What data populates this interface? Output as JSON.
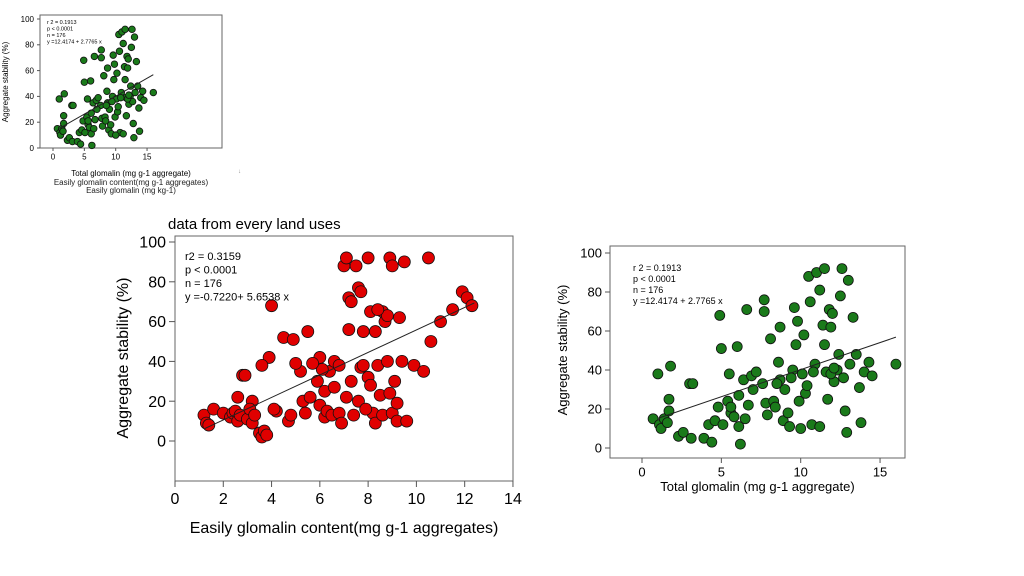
{
  "chart_data": [
    {
      "id": "small",
      "type": "scatter",
      "xlabel": "Total glomalin (mg g-1 aggregate)",
      "ylabel": "Aggregate stability (%)",
      "xlim": [
        -2,
        18
      ],
      "ylim": [
        0,
        100
      ],
      "xticks": [
        0,
        5,
        10,
        15
      ],
      "yticks": [
        0,
        20,
        40,
        60,
        80,
        100
      ],
      "stats": [
        "r 2 = 0.1913",
        "p < 0.0001",
        "n = 176",
        "y =12.4174 + 2.7765 x"
      ],
      "fit": {
        "intercept": 12.4174,
        "slope": 2.7765,
        "x_range": [
          1,
          16
        ]
      },
      "color": "#1a7a1a",
      "overlapped_labels": [
        "Easily glomalin content(mg g-1 aggregates)",
        "Easily glomalin (mg kg-1)"
      ],
      "stray_mark": "↓"
    },
    {
      "id": "red",
      "type": "scatter",
      "title": "data from every land uses",
      "xlabel": "Easily glomalin content(mg g-1 aggregates)",
      "ylabel": "Aggregate stability (%)",
      "xlim": [
        0,
        14
      ],
      "ylim": [
        -20,
        100
      ],
      "xticks": [
        0,
        2,
        4,
        6,
        8,
        10,
        12,
        14
      ],
      "yticks": [
        0,
        20,
        40,
        60,
        80,
        100
      ],
      "stats": [
        "r2 = 0.3159",
        "p < 0.0001",
        "n = 176",
        "y =-0.7220+ 5.6538 x"
      ],
      "fit": {
        "intercept": -0.722,
        "slope": 5.6538,
        "x_range": [
          1.2,
          12.4
        ]
      },
      "color": "#e00000",
      "points": [
        [
          1.2,
          13
        ],
        [
          1.3,
          9
        ],
        [
          1.4,
          8
        ],
        [
          1.6,
          16
        ],
        [
          2.0,
          14
        ],
        [
          2.3,
          12
        ],
        [
          2.4,
          14
        ],
        [
          2.5,
          15
        ],
        [
          2.6,
          10
        ],
        [
          2.7,
          13
        ],
        [
          2.8,
          33
        ],
        [
          2.9,
          33
        ],
        [
          2.6,
          22
        ],
        [
          3.0,
          11
        ],
        [
          3.2,
          9
        ],
        [
          3.2,
          20
        ],
        [
          3.5,
          4
        ],
        [
          3.6,
          2
        ],
        [
          3.7,
          5
        ],
        [
          3.8,
          3
        ],
        [
          3.9,
          42
        ],
        [
          3.6,
          38
        ],
        [
          4.0,
          68
        ],
        [
          4.2,
          15
        ],
        [
          4.7,
          10
        ],
        [
          4.8,
          13
        ],
        [
          4.5,
          52
        ],
        [
          4.9,
          51
        ],
        [
          5.2,
          35
        ],
        [
          5.0,
          39
        ],
        [
          5.3,
          20
        ],
        [
          5.4,
          14
        ],
        [
          5.5,
          55
        ],
        [
          5.6,
          22
        ],
        [
          5.9,
          30
        ],
        [
          6.0,
          42
        ],
        [
          6.0,
          18
        ],
        [
          6.2,
          25
        ],
        [
          6.2,
          12
        ],
        [
          6.3,
          15
        ],
        [
          6.4,
          35
        ],
        [
          6.5,
          13
        ],
        [
          6.6,
          27
        ],
        [
          6.6,
          40
        ],
        [
          6.8,
          14
        ],
        [
          6.9,
          9
        ],
        [
          7.0,
          88
        ],
        [
          7.1,
          92
        ],
        [
          7.2,
          72
        ],
        [
          7.3,
          70
        ],
        [
          7.5,
          88
        ],
        [
          7.6,
          77
        ],
        [
          7.7,
          75
        ],
        [
          7.1,
          22
        ],
        [
          7.3,
          30
        ],
        [
          7.4,
          13
        ],
        [
          7.6,
          20
        ],
        [
          7.7,
          37
        ],
        [
          7.8,
          38
        ],
        [
          8.0,
          32
        ],
        [
          8.0,
          92
        ],
        [
          8.1,
          65
        ],
        [
          8.2,
          14
        ],
        [
          8.3,
          9
        ],
        [
          8.3,
          55
        ],
        [
          8.4,
          38
        ],
        [
          8.5,
          23
        ],
        [
          8.6,
          65
        ],
        [
          8.7,
          60
        ],
        [
          8.8,
          40
        ],
        [
          8.9,
          92
        ],
        [
          8.8,
          63
        ],
        [
          8.6,
          13
        ],
        [
          9.0,
          14
        ],
        [
          9.1,
          30
        ],
        [
          9.2,
          10
        ],
        [
          9.3,
          62
        ],
        [
          9.4,
          40
        ],
        [
          9.5,
          90
        ],
        [
          9.9,
          38
        ],
        [
          9.2,
          19
        ],
        [
          9.0,
          88
        ],
        [
          10.3,
          35
        ],
        [
          10.6,
          50
        ],
        [
          10.5,
          92
        ],
        [
          11.0,
          60
        ],
        [
          11.5,
          66
        ],
        [
          11.9,
          75
        ],
        [
          12.1,
          72
        ],
        [
          12.3,
          68
        ],
        [
          7.8,
          55
        ],
        [
          8.4,
          66
        ],
        [
          7.2,
          56
        ],
        [
          9.6,
          10
        ],
        [
          8.9,
          24
        ],
        [
          8.1,
          28
        ],
        [
          7.9,
          16
        ],
        [
          6.8,
          38
        ],
        [
          6.1,
          36
        ],
        [
          5.7,
          39
        ],
        [
          4.1,
          16
        ],
        [
          3.1,
          16
        ],
        [
          3.3,
          13
        ]
      ]
    },
    {
      "id": "green",
      "type": "scatter",
      "xlabel": "Total glomalin (mg g-1 aggregate)",
      "ylabel": "Aggregate stability (%)",
      "xlim": [
        -2,
        18
      ],
      "ylim": [
        0,
        100
      ],
      "xticks": [
        0,
        5,
        10,
        15
      ],
      "yticks": [
        0,
        20,
        40,
        60,
        80,
        100
      ],
      "stats": [
        "r 2 = 0.1913",
        "p < 0.0001",
        "n = 176",
        "y =12.4174 + 2.7765 x"
      ],
      "fit": {
        "intercept": 12.4174,
        "slope": 2.7765,
        "x_range": [
          1,
          16
        ]
      },
      "color": "#1a7a1a",
      "points": [
        [
          0.7,
          15
        ],
        [
          1.0,
          38
        ],
        [
          1.1,
          12
        ],
        [
          1.2,
          10
        ],
        [
          1.4,
          15
        ],
        [
          1.6,
          13
        ],
        [
          1.7,
          19
        ],
        [
          1.8,
          42
        ],
        [
          1.7,
          25
        ],
        [
          2.3,
          6
        ],
        [
          2.6,
          8
        ],
        [
          3.0,
          33
        ],
        [
          3.2,
          33
        ],
        [
          3.1,
          5
        ],
        [
          3.9,
          5
        ],
        [
          4.2,
          12
        ],
        [
          4.4,
          3
        ],
        [
          4.6,
          14
        ],
        [
          4.8,
          21
        ],
        [
          4.9,
          68
        ],
        [
          5.0,
          51
        ],
        [
          5.1,
          12
        ],
        [
          5.4,
          24
        ],
        [
          5.5,
          38
        ],
        [
          5.6,
          18
        ],
        [
          5.8,
          16
        ],
        [
          6.0,
          52
        ],
        [
          6.1,
          27
        ],
        [
          6.2,
          2
        ],
        [
          6.1,
          11
        ],
        [
          6.4,
          35
        ],
        [
          6.6,
          71
        ],
        [
          6.5,
          15
        ],
        [
          6.7,
          22
        ],
        [
          6.9,
          37
        ],
        [
          7.2,
          39
        ],
        [
          7.7,
          76
        ],
        [
          7.7,
          70
        ],
        [
          7.6,
          33
        ],
        [
          7.8,
          23
        ],
        [
          7.9,
          17
        ],
        [
          8.1,
          56
        ],
        [
          8.3,
          24
        ],
        [
          8.4,
          21
        ],
        [
          8.6,
          44
        ],
        [
          8.7,
          62
        ],
        [
          8.7,
          35
        ],
        [
          8.9,
          14
        ],
        [
          9.0,
          30
        ],
        [
          9.2,
          18
        ],
        [
          9.3,
          11
        ],
        [
          9.5,
          40
        ],
        [
          9.6,
          72
        ],
        [
          9.7,
          53
        ],
        [
          9.8,
          65
        ],
        [
          9.9,
          24
        ],
        [
          10.1,
          38
        ],
        [
          10.2,
          58
        ],
        [
          10.3,
          28
        ],
        [
          10.4,
          32
        ],
        [
          10.5,
          88
        ],
        [
          10.6,
          75
        ],
        [
          10.7,
          12
        ],
        [
          10.9,
          43
        ],
        [
          11.0,
          90
        ],
        [
          11.2,
          81
        ],
        [
          11.4,
          63
        ],
        [
          11.5,
          92
        ],
        [
          11.5,
          53
        ],
        [
          11.6,
          39
        ],
        [
          11.7,
          25
        ],
        [
          11.8,
          71
        ],
        [
          11.9,
          62
        ],
        [
          12.0,
          69
        ],
        [
          12.1,
          34
        ],
        [
          12.3,
          40
        ],
        [
          12.4,
          48
        ],
        [
          12.5,
          78
        ],
        [
          12.6,
          92
        ],
        [
          12.7,
          36
        ],
        [
          12.8,
          19
        ],
        [
          12.9,
          8
        ],
        [
          13.0,
          86
        ],
        [
          13.1,
          43
        ],
        [
          13.3,
          67
        ],
        [
          13.5,
          48
        ],
        [
          13.7,
          31
        ],
        [
          13.8,
          13
        ],
        [
          14.0,
          39
        ],
        [
          14.3,
          44
        ],
        [
          14.5,
          37
        ],
        [
          16.0,
          43
        ],
        [
          10.0,
          10
        ],
        [
          11.2,
          11
        ],
        [
          9.4,
          36
        ],
        [
          10.8,
          39
        ],
        [
          11.9,
          38
        ],
        [
          8.5,
          33
        ],
        [
          7.0,
          30
        ],
        [
          5.6,
          21
        ],
        [
          12.1,
          41
        ]
      ]
    }
  ]
}
